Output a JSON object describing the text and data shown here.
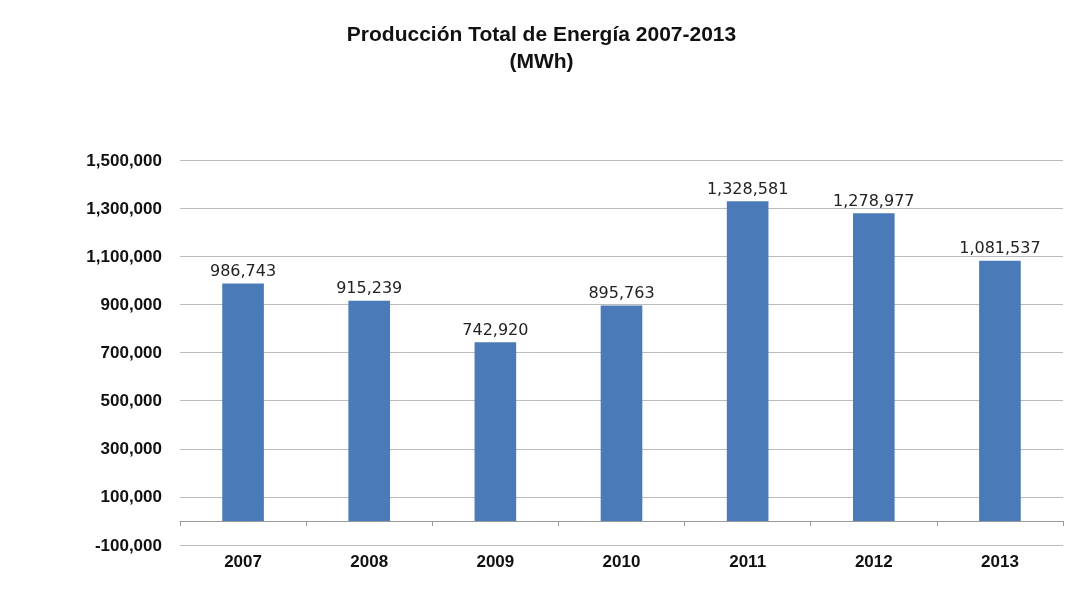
{
  "chart_data": {
    "type": "bar",
    "title": "Producción Total de Energía 2007-2013",
    "subtitle": "(MWh)",
    "categories": [
      "2007",
      "2008",
      "2009",
      "2010",
      "2011",
      "2012",
      "2013"
    ],
    "values": [
      986743,
      915239,
      742920,
      895763,
      1328581,
      1278977,
      1081537
    ],
    "value_labels": [
      "986,743",
      "915,239",
      "742,920",
      "895,763",
      "1,328,581",
      "1,278,977",
      "1,081,537"
    ],
    "color": "#4a7ab8",
    "ylim": [
      -100000,
      1500000
    ],
    "yticks": [
      {
        "value": -100000,
        "label": "-100,000"
      },
      {
        "value": 100000,
        "label": "100,000"
      },
      {
        "value": 300000,
        "label": "300,000"
      },
      {
        "value": 500000,
        "label": "500,000"
      },
      {
        "value": 700000,
        "label": "700,000"
      },
      {
        "value": 900000,
        "label": "900,000"
      },
      {
        "value": 1100000,
        "label": "1,100,000"
      },
      {
        "value": 1300000,
        "label": "1,300,000"
      },
      {
        "value": 1500000,
        "label": "1,500,000"
      }
    ],
    "grid": "y"
  }
}
